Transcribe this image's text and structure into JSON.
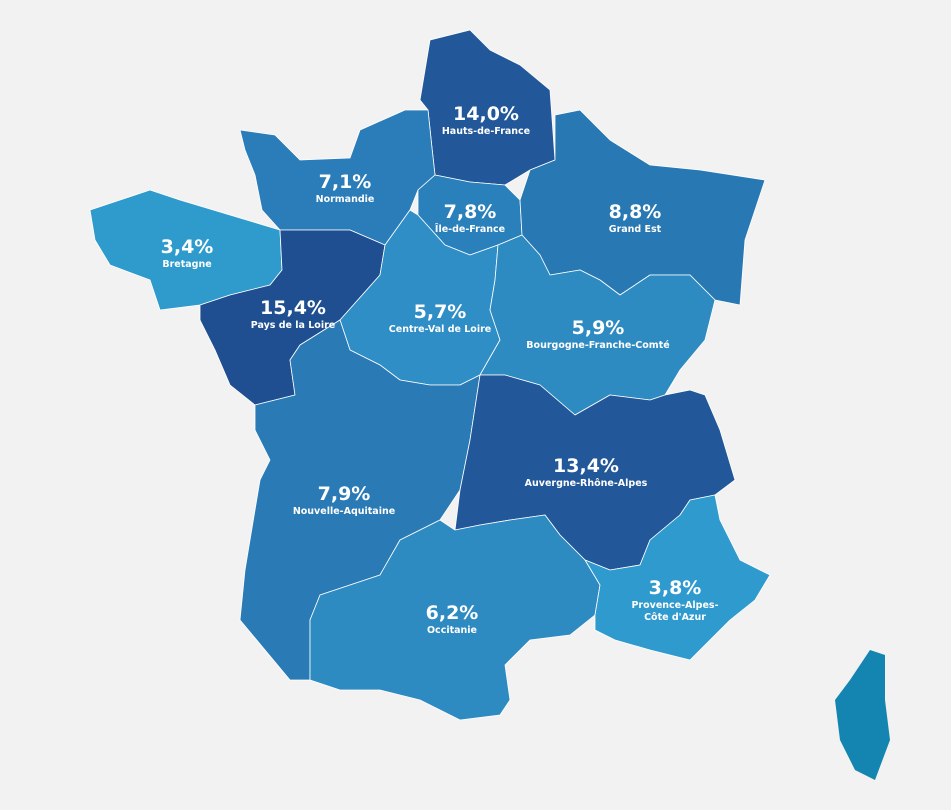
{
  "chart_data": {
    "type": "map",
    "regions": [
      {
        "name": "Hauts-de-France",
        "value": 14.0,
        "value_label": "14,0%",
        "color": "#22589a"
      },
      {
        "name": "Normandie",
        "value": 7.1,
        "value_label": "7,1%",
        "color": "#2a7db8"
      },
      {
        "name": "Île-de-France",
        "value": 7.8,
        "value_label": "7,8%",
        "color": "#2a80bb"
      },
      {
        "name": "Grand Est",
        "value": 8.8,
        "value_label": "8,8%",
        "color": "#2878b3"
      },
      {
        "name": "Bretagne",
        "value": 3.4,
        "value_label": "3,4%",
        "color": "#2e9bcc"
      },
      {
        "name": "Pays de la Loire",
        "value": 15.4,
        "value_label": "15,4%",
        "color": "#1f4f91"
      },
      {
        "name": "Centre-Val de Loire",
        "value": 5.7,
        "value_label": "5,7%",
        "color": "#2f8ec5"
      },
      {
        "name": "Bourgogne-Franche-Comté",
        "value": 5.9,
        "value_label": "5,9%",
        "color": "#2e8bc2"
      },
      {
        "name": "Nouvelle-Aquitaine",
        "value": 7.9,
        "value_label": "7,9%",
        "color": "#2a7ab5"
      },
      {
        "name": "Auvergne-Rhône-Alpes",
        "value": 13.4,
        "value_label": "13,4%",
        "color": "#22589a"
      },
      {
        "name": "Occitanie",
        "value": 6.2,
        "value_label": "6,2%",
        "color": "#2e8bc2"
      },
      {
        "name": "Provence-Alpes-Côte d'Azur",
        "value": 3.8,
        "value_label": "3,8%",
        "color": "#2f9acd"
      }
    ]
  }
}
